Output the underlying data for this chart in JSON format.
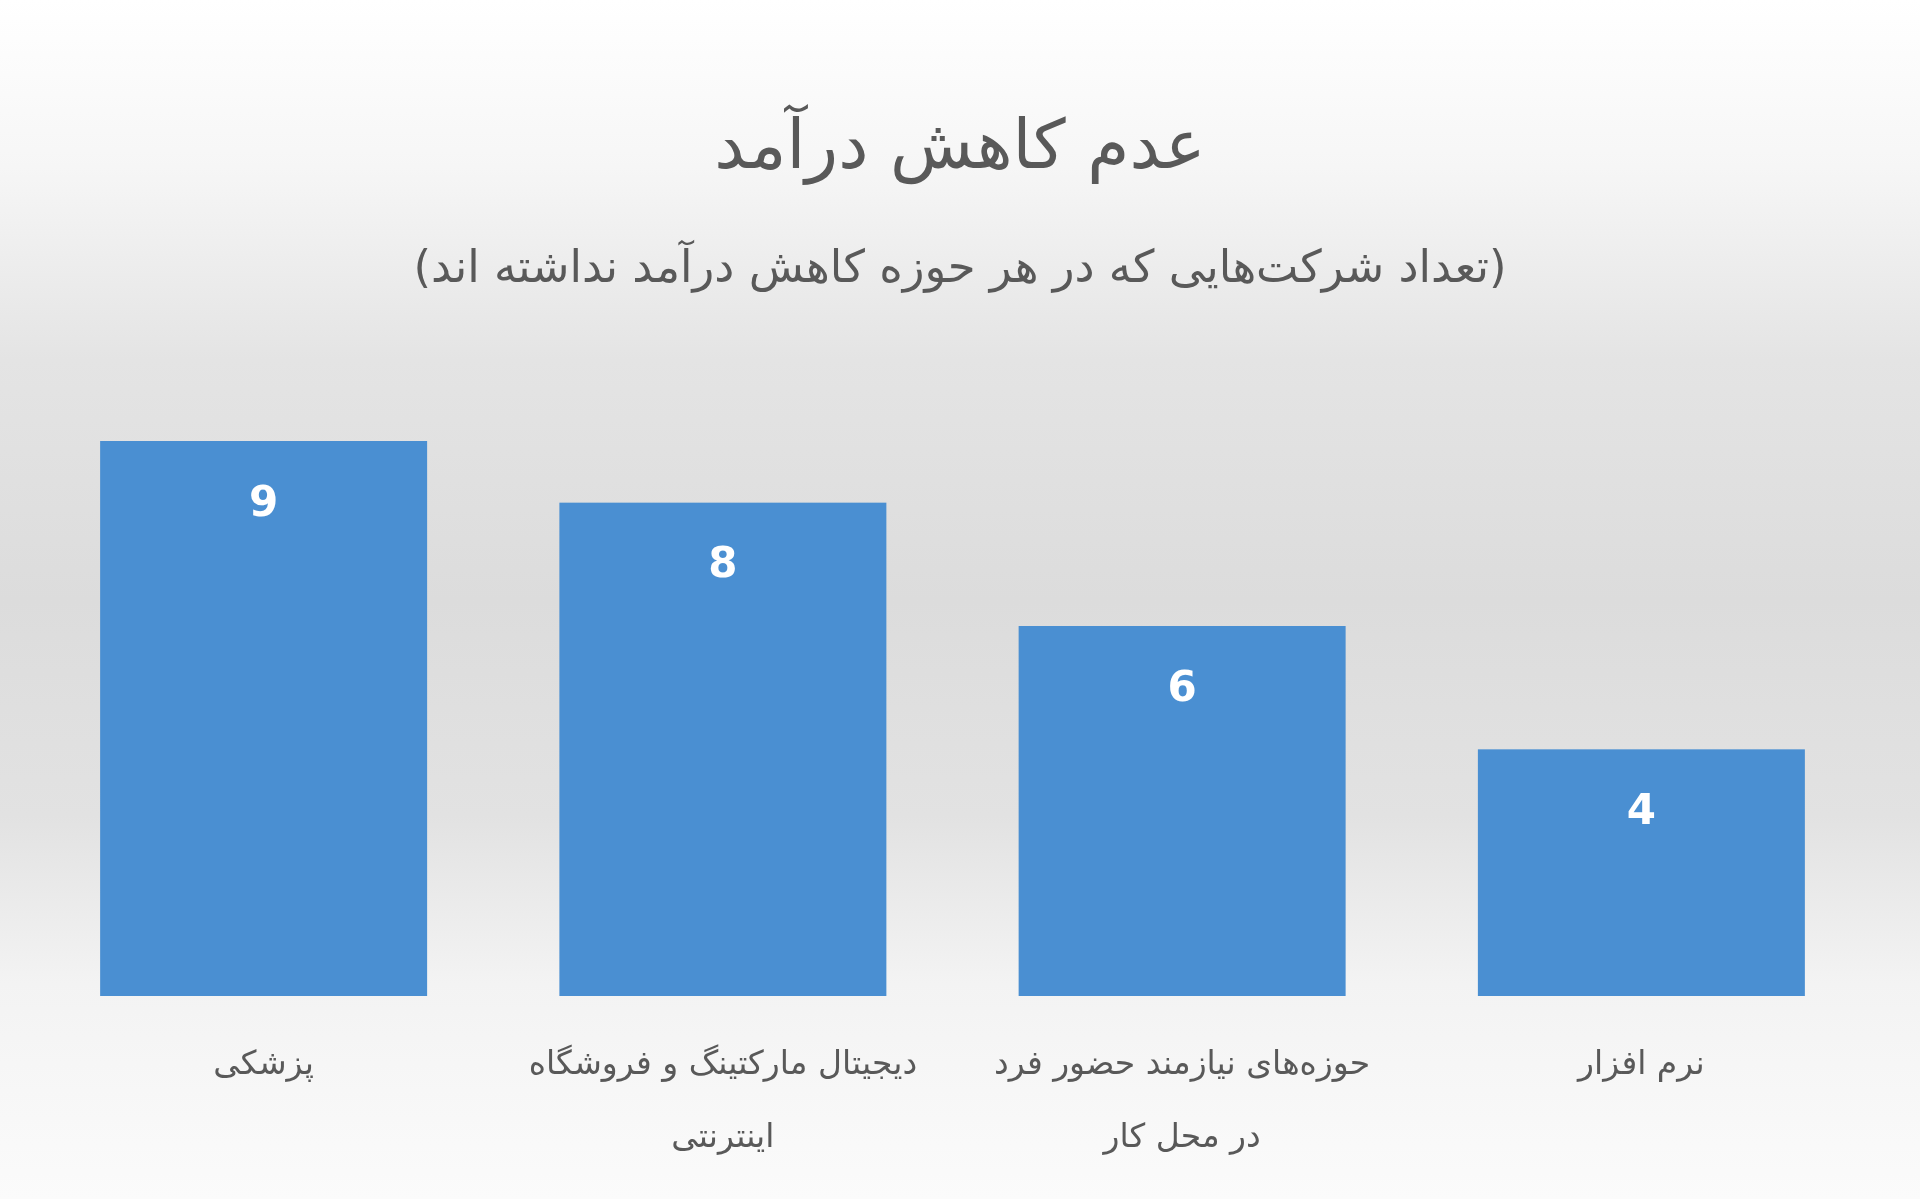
{
  "chart_data": {
    "type": "bar",
    "title": "عدم کاهش درآمد",
    "subtitle": "(تعداد شرکت‌هایی که در هر حوزه کاهش درآمد نداشته اند)",
    "categories": [
      "پزشکی",
      "دیجیتال مارکتینگ و فروشگاه اینترنتی",
      "حوزه‌های نیازمند حضور فرد در محل کار",
      "نرم افزار"
    ],
    "values": [
      9,
      8,
      6,
      4
    ],
    "color": "#4a8fd2",
    "data_labels": true
  }
}
